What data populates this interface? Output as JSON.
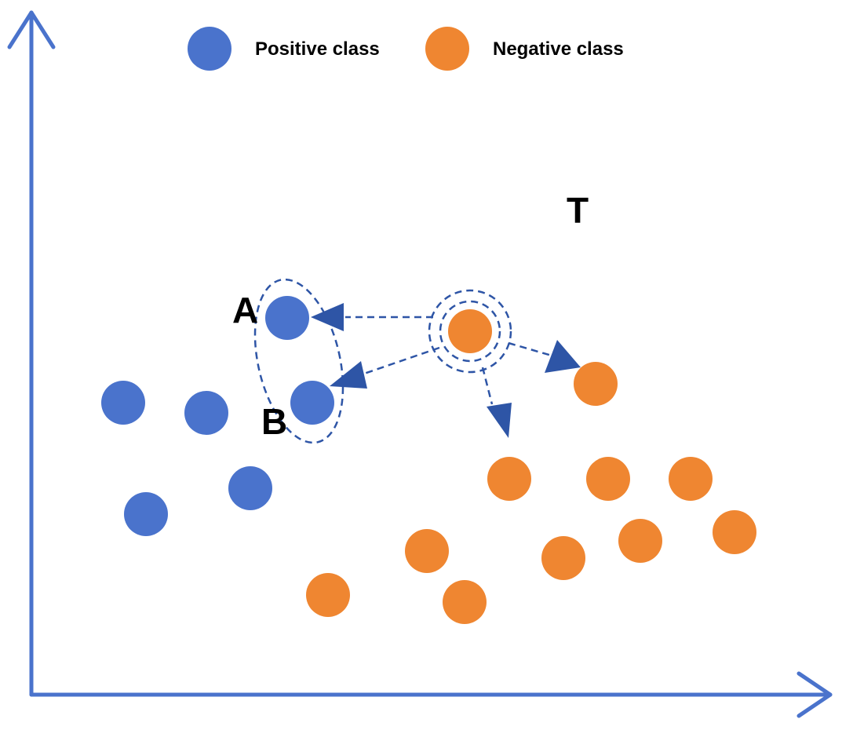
{
  "legend": {
    "positive_label": "Positive class",
    "negative_label": "Negative class"
  },
  "labels": {
    "a": "A",
    "b": "B",
    "t": "T"
  },
  "colors": {
    "positive": "#4a73cc",
    "negative": "#ef8631",
    "axis": "#4a73cc",
    "arrow": "#2e55a6"
  }
}
